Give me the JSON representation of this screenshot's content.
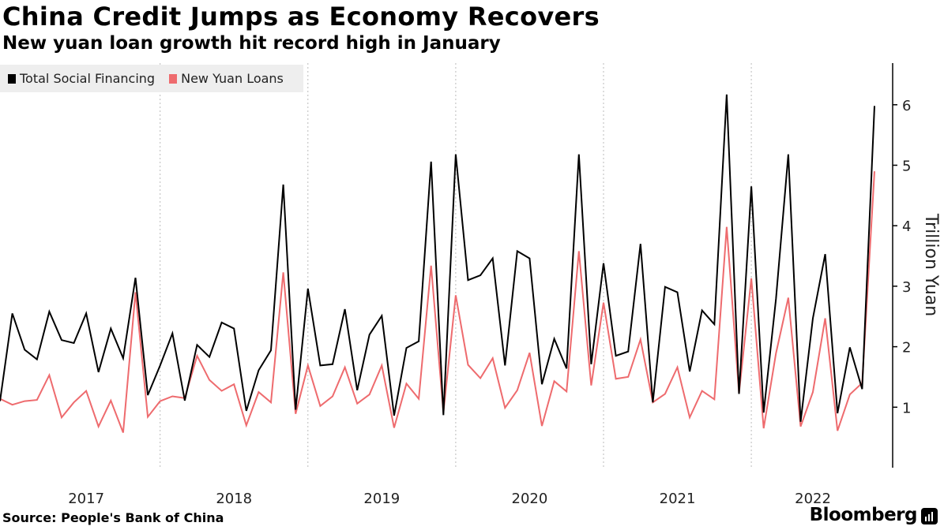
{
  "header": {
    "title": "China Credit Jumps as Economy Recovers",
    "subtitle": "New yuan loan growth hit record high in January"
  },
  "footer": {
    "source": "Source: People's Bank of China",
    "brand": "Bloomberg"
  },
  "colors": {
    "tsf": "#000000",
    "loans": "#ee6b6e",
    "grid": "#bbbbbb",
    "legend_bg": "#eeeeee"
  },
  "chart_data": {
    "type": "line",
    "title": "China Credit Jumps as Economy Recovers",
    "subtitle": "New yuan loan growth hit record high in January",
    "ylabel": "Trillion Yuan",
    "ylim": [
      0,
      6.7
    ],
    "y_ticks": [
      1,
      2,
      3,
      4,
      5,
      6
    ],
    "x_tick_labels": [
      "2017",
      "2018",
      "2019",
      "2020",
      "2021",
      "2022"
    ],
    "x_start": "2016-12",
    "x_end": "2023-01",
    "grid": "vertical dashed at year boundaries",
    "legend_position": "top-left",
    "series": [
      {
        "name": "Total Social Financing",
        "values": [
          1.1,
          2.55,
          1.95,
          1.79,
          2.58,
          2.11,
          2.06,
          2.55,
          1.58,
          2.3,
          1.81,
          3.14,
          1.2,
          1.69,
          2.22,
          1.11,
          2.03,
          1.83,
          2.4,
          2.3,
          0.94,
          1.61,
          1.94,
          4.68,
          0.96,
          2.96,
          1.69,
          1.71,
          2.62,
          1.28,
          2.2,
          2.51,
          0.86,
          1.98,
          2.09,
          5.06,
          0.87,
          5.18,
          3.1,
          3.18,
          3.46,
          1.69,
          3.58,
          3.46,
          1.38,
          2.13,
          1.64,
          5.18,
          1.71,
          3.38,
          1.85,
          1.92,
          3.7,
          1.08,
          2.99,
          2.9,
          1.59,
          2.6,
          2.37,
          6.17,
          1.22,
          4.65,
          0.91,
          2.79,
          5.18,
          0.76,
          2.47,
          3.53,
          0.9,
          1.99,
          1.3,
          5.98
        ]
      },
      {
        "name": "New Yuan Loans",
        "values": [
          1.14,
          1.04,
          1.1,
          1.12,
          1.53,
          0.83,
          1.08,
          1.27,
          0.68,
          1.11,
          0.58,
          2.9,
          0.84,
          1.1,
          1.18,
          1.15,
          1.85,
          1.45,
          1.27,
          1.38,
          0.7,
          1.25,
          1.08,
          3.23,
          0.89,
          1.69,
          1.02,
          1.18,
          1.66,
          1.06,
          1.21,
          1.69,
          0.66,
          1.39,
          1.14,
          3.34,
          0.91,
          2.85,
          1.7,
          1.48,
          1.81,
          0.99,
          1.28,
          1.9,
          0.69,
          1.43,
          1.26,
          3.58,
          1.36,
          2.73,
          1.47,
          1.5,
          2.12,
          1.08,
          1.22,
          1.66,
          0.83,
          1.27,
          1.13,
          3.98,
          1.23,
          3.13,
          0.65,
          1.89,
          2.81,
          0.68,
          1.25,
          2.47,
          0.61,
          1.21,
          1.4,
          4.9
        ]
      }
    ]
  }
}
